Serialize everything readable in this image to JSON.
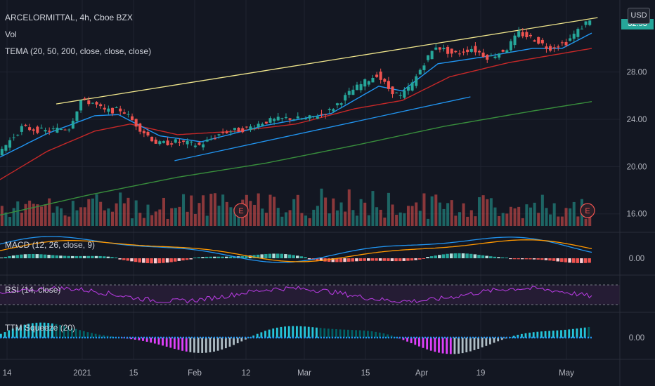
{
  "header": {
    "title": "ARCELORMITTAL, 4h, Cboe BZX",
    "vol_label": "Vol",
    "tema_label": "TEMA (20, 50, 200, close, close, close)"
  },
  "currency": "USD",
  "last_price": "32.53",
  "panes": {
    "macd": "MACD (12, 26, close, 9)",
    "rsi": "RSI (14, close)",
    "ttm": "TTM Squeeze (20)"
  },
  "earnings_marker": "E",
  "colors": {
    "up": "#26a69a",
    "down": "#ef5350",
    "tema_fast": "#2196f3",
    "tema_mid": "#c62828",
    "tema_slow": "#388e3c",
    "trend_top": "#f0e68c",
    "trend_bottom": "#2196f3",
    "rsi": "#b03ad9",
    "macd": "#2196f3",
    "signal": "#ff9800"
  },
  "chart_data": {
    "type": "candlestick",
    "price_axis": {
      "ticks": [
        16.0,
        20.0,
        24.0,
        28.0
      ],
      "tick_labels": [
        "16.00",
        "20.00",
        "24.00",
        "28.00"
      ],
      "range": [
        14.5,
        33.5
      ]
    },
    "time_axis": {
      "labels": [
        "14",
        "2021",
        "15",
        "Feb",
        "12",
        "Mar",
        "15",
        "Apr",
        "19",
        "May"
      ]
    },
    "price_path": [
      {
        "t": 0,
        "p": 21.1
      },
      {
        "t": 0.04,
        "p": 23.3
      },
      {
        "t": 0.08,
        "p": 23.0
      },
      {
        "t": 0.12,
        "p": 23.3
      },
      {
        "t": 0.14,
        "p": 25.6
      },
      {
        "t": 0.16,
        "p": 25.4
      },
      {
        "t": 0.18,
        "p": 24.7
      },
      {
        "t": 0.21,
        "p": 24.8
      },
      {
        "t": 0.24,
        "p": 23.2
      },
      {
        "t": 0.27,
        "p": 21.9
      },
      {
        "t": 0.3,
        "p": 22.1
      },
      {
        "t": 0.34,
        "p": 21.8
      },
      {
        "t": 0.38,
        "p": 22.9
      },
      {
        "t": 0.42,
        "p": 23.2
      },
      {
        "t": 0.45,
        "p": 23.8
      },
      {
        "t": 0.49,
        "p": 24.1
      },
      {
        "t": 0.52,
        "p": 24.0
      },
      {
        "t": 0.56,
        "p": 24.7
      },
      {
        "t": 0.6,
        "p": 26.5
      },
      {
        "t": 0.64,
        "p": 27.8
      },
      {
        "t": 0.66,
        "p": 26.6
      },
      {
        "t": 0.68,
        "p": 25.9
      },
      {
        "t": 0.7,
        "p": 27.0
      },
      {
        "t": 0.72,
        "p": 28.8
      },
      {
        "t": 0.74,
        "p": 30.2
      },
      {
        "t": 0.77,
        "p": 29.5
      },
      {
        "t": 0.8,
        "p": 30.0
      },
      {
        "t": 0.83,
        "p": 29.2
      },
      {
        "t": 0.86,
        "p": 30.0
      },
      {
        "t": 0.88,
        "p": 31.3
      },
      {
        "t": 0.91,
        "p": 30.7
      },
      {
        "t": 0.93,
        "p": 30.0
      },
      {
        "t": 0.96,
        "p": 30.5
      },
      {
        "t": 1,
        "p": 32.5
      }
    ],
    "tema_fast_path": [
      {
        "t": 0,
        "p": 20.8
      },
      {
        "t": 0.08,
        "p": 22.8
      },
      {
        "t": 0.16,
        "p": 24.3
      },
      {
        "t": 0.2,
        "p": 24.4
      },
      {
        "t": 0.27,
        "p": 22.6
      },
      {
        "t": 0.34,
        "p": 22.1
      },
      {
        "t": 0.45,
        "p": 23.5
      },
      {
        "t": 0.56,
        "p": 24.5
      },
      {
        "t": 0.64,
        "p": 26.8
      },
      {
        "t": 0.68,
        "p": 26.4
      },
      {
        "t": 0.74,
        "p": 28.7
      },
      {
        "t": 0.82,
        "p": 29.3
      },
      {
        "t": 0.9,
        "p": 30.0
      },
      {
        "t": 0.95,
        "p": 30.0
      },
      {
        "t": 1,
        "p": 31.3
      }
    ],
    "tema_mid_path": [
      {
        "t": 0,
        "p": 18.9
      },
      {
        "t": 0.08,
        "p": 21.3
      },
      {
        "t": 0.16,
        "p": 23.0
      },
      {
        "t": 0.22,
        "p": 23.6
      },
      {
        "t": 0.3,
        "p": 22.7
      },
      {
        "t": 0.4,
        "p": 23.0
      },
      {
        "t": 0.5,
        "p": 23.6
      },
      {
        "t": 0.6,
        "p": 24.9
      },
      {
        "t": 0.68,
        "p": 25.6
      },
      {
        "t": 0.76,
        "p": 27.6
      },
      {
        "t": 0.86,
        "p": 28.8
      },
      {
        "t": 1,
        "p": 30.0
      }
    ],
    "tema_slow_path": [
      {
        "t": 0,
        "p": 15.9
      },
      {
        "t": 0.15,
        "p": 17.6
      },
      {
        "t": 0.3,
        "p": 19.1
      },
      {
        "t": 0.45,
        "p": 20.3
      },
      {
        "t": 0.6,
        "p": 21.8
      },
      {
        "t": 0.75,
        "p": 23.4
      },
      {
        "t": 0.9,
        "p": 24.7
      },
      {
        "t": 1,
        "p": 25.5
      }
    ],
    "trendline_top": {
      "from": {
        "t": 0.095,
        "p": 25.3
      },
      "to": {
        "t": 1.01,
        "p": 32.6
      }
    },
    "trendline_bottom": {
      "from": {
        "t": 0.295,
        "p": 20.5
      },
      "to": {
        "t": 0.795,
        "p": 25.9
      }
    },
    "macd": {
      "ticks": [
        0.0
      ],
      "tick_labels": [
        "0.00"
      ]
    },
    "rsi": {
      "overbought": 70,
      "oversold": 30
    },
    "ttm": {
      "ticks": [
        0.0
      ],
      "tick_labels": [
        "0.00"
      ]
    }
  }
}
